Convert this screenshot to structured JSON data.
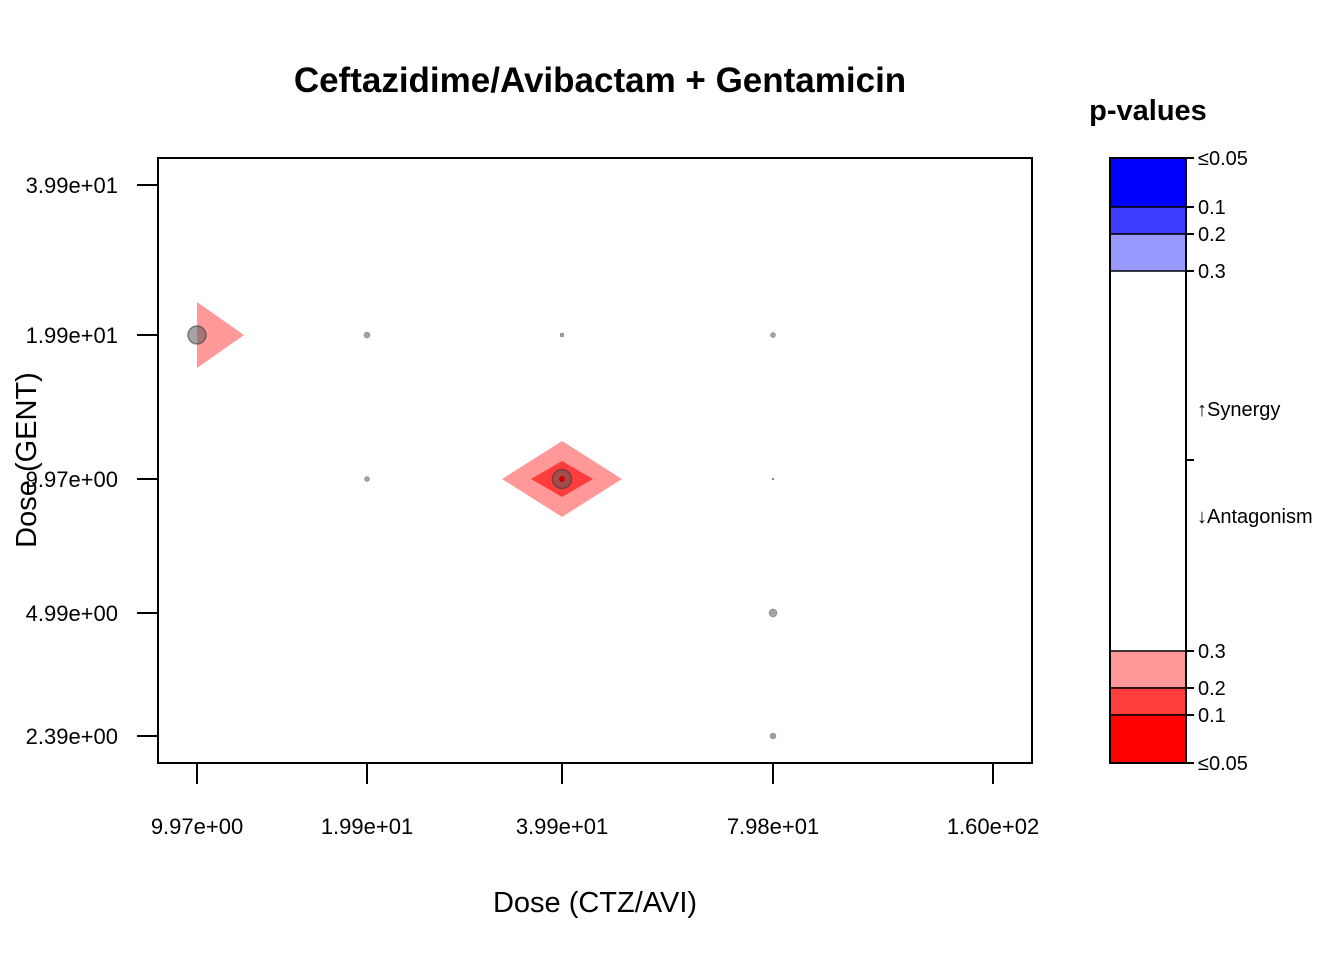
{
  "chart_data": {
    "type": "scatter",
    "title": "Ceftazidime/Avibactam + Gentamicin",
    "xlabel": "Dose (CTZ/AVI)",
    "ylabel": "Dose (GENT)",
    "x_ticks": [
      "9.97e+00",
      "1.99e+01",
      "3.99e+01",
      "7.98e+01",
      "1.60e+02"
    ],
    "y_ticks": [
      "3.99e+01",
      "1.99e+01",
      "9.97e+00",
      "4.99e+00",
      "2.39e+00"
    ],
    "x_scale": "log",
    "y_scale": "log",
    "grid": false,
    "points": [
      {
        "x": 9.97,
        "y": 19.9,
        "size": 0.9
      },
      {
        "x": 19.9,
        "y": 19.9,
        "size": 0.3
      },
      {
        "x": 39.9,
        "y": 19.9,
        "size": 0.2
      },
      {
        "x": 79.8,
        "y": 19.9,
        "size": 0.25
      },
      {
        "x": 19.9,
        "y": 9.97,
        "size": 0.25
      },
      {
        "x": 39.9,
        "y": 9.97,
        "size": 0.95
      },
      {
        "x": 79.8,
        "y": 9.97,
        "size": 0.1
      },
      {
        "x": 79.8,
        "y": 4.99,
        "size": 0.4
      },
      {
        "x": 79.8,
        "y": 2.39,
        "size": 0.3
      }
    ],
    "markers": [
      {
        "x": 9.97,
        "y": 19.9,
        "shape": "right-triangle",
        "p": 0.3,
        "color": "#ff9999"
      },
      {
        "x": 39.9,
        "y": 9.97,
        "shape": "diamond",
        "p": 0.3,
        "color": "#ff9999"
      },
      {
        "x": 39.9,
        "y": 9.97,
        "shape": "diamond",
        "p": 0.2,
        "color": "#ff3d3d"
      }
    ],
    "legend": {
      "title": "p-values",
      "placement": "right",
      "synergy_label": "↑Synergy",
      "antagonism_label": "↓Antagonism",
      "synergy_levels": [
        {
          "label": "≤0.05",
          "color": "#0000ff"
        },
        {
          "label": "0.1",
          "color": "#3d3dff"
        },
        {
          "label": "0.2",
          "color": "#9999ff"
        },
        {
          "label": "0.3",
          "color": "#ffffff"
        }
      ],
      "antagonism_levels": [
        {
          "label": "0.3",
          "color": "#ff9999"
        },
        {
          "label": "0.2",
          "color": "#ff3d3d"
        },
        {
          "label": "0.1",
          "color": "#ff0000"
        },
        {
          "label": "≤0.05",
          "color": "#ff0000"
        }
      ]
    }
  }
}
